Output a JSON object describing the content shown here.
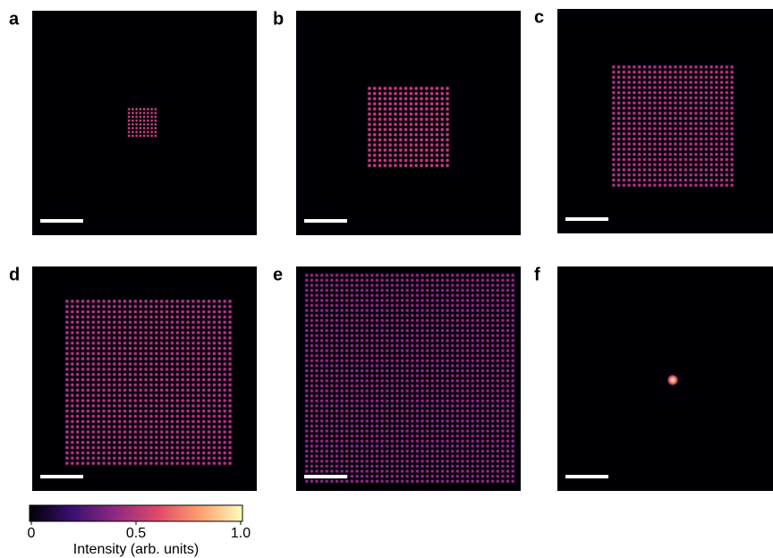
{
  "panels": [
    {
      "label": "a"
    },
    {
      "label": "b"
    },
    {
      "label": "c"
    },
    {
      "label": "d"
    },
    {
      "label": "e"
    },
    {
      "label": "f"
    }
  ],
  "colorbar": {
    "label": "Intensity (arb. units)",
    "lim": [
      0,
      1
    ],
    "ticks": [
      0,
      0.5,
      {
        "value": 1,
        "label": "1.0"
      }
    ]
  }
}
